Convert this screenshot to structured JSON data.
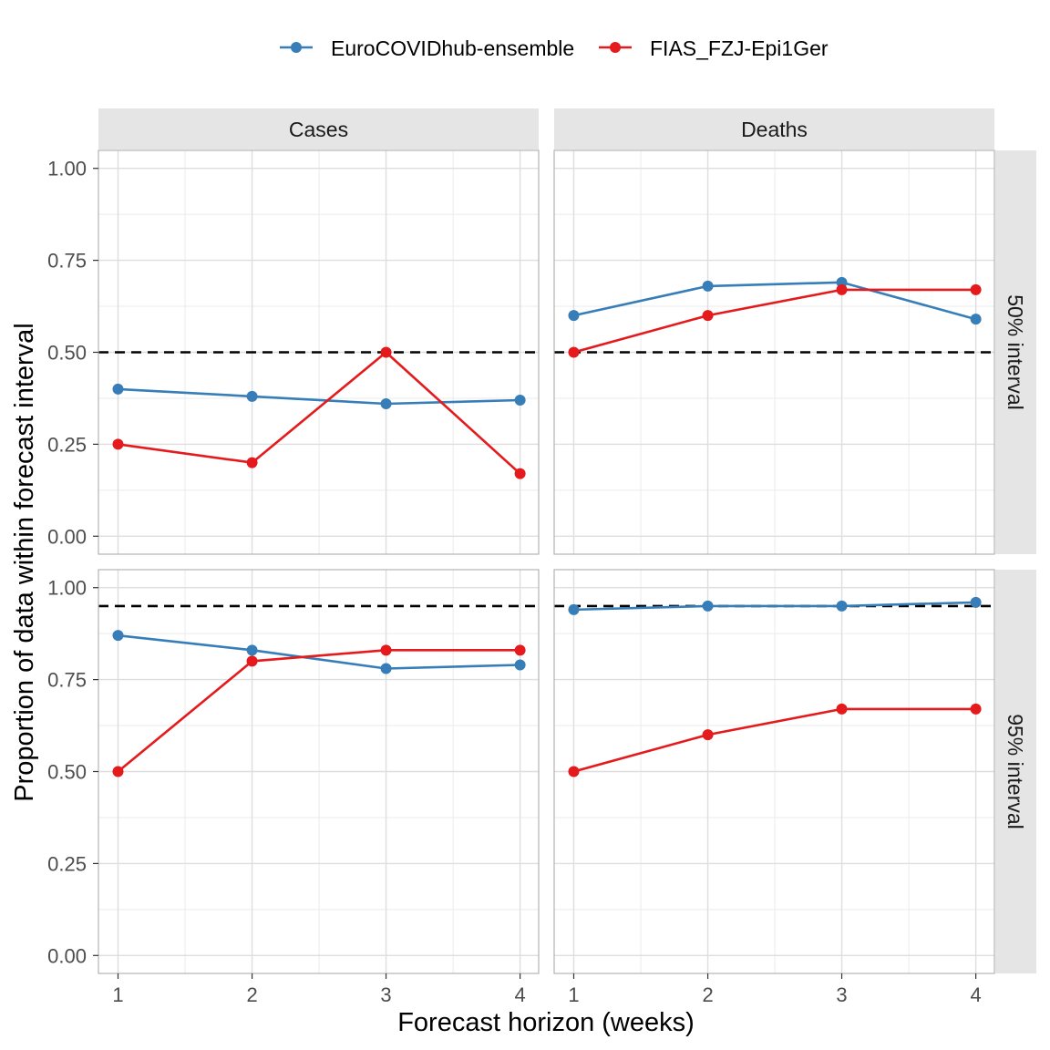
{
  "chart_data": {
    "type": "line",
    "xlabel": "Forecast horizon (weeks)",
    "ylabel": "Proportion of data within forecast interval",
    "x": [
      1,
      2,
      3,
      4
    ],
    "x_ticks": [
      "1",
      "2",
      "3",
      "4"
    ],
    "y_ticks": [
      "0.00",
      "0.25",
      "0.50",
      "0.75",
      "1.00"
    ],
    "ylim": [
      0,
      1
    ],
    "legend_position": "top",
    "columns": [
      "Cases",
      "Deaths"
    ],
    "rows": [
      "50% interval",
      "95% interval"
    ],
    "series_styles": [
      {
        "name": "EuroCOVIDhub-ensemble",
        "color": "#377EB8"
      },
      {
        "name": "FIAS_FZJ-Epi1Ger",
        "color": "#E41A1C"
      }
    ],
    "panels": [
      {
        "column": "Cases",
        "row": "50% interval",
        "reference": 0.5,
        "series": [
          {
            "name": "EuroCOVIDhub-ensemble",
            "values": [
              0.4,
              0.38,
              0.36,
              0.37
            ]
          },
          {
            "name": "FIAS_FZJ-Epi1Ger",
            "values": [
              0.25,
              0.2,
              0.5,
              0.17
            ]
          }
        ]
      },
      {
        "column": "Deaths",
        "row": "50% interval",
        "reference": 0.5,
        "series": [
          {
            "name": "EuroCOVIDhub-ensemble",
            "values": [
              0.6,
              0.68,
              0.69,
              0.59
            ]
          },
          {
            "name": "FIAS_FZJ-Epi1Ger",
            "values": [
              0.5,
              0.6,
              0.67,
              0.67
            ]
          }
        ]
      },
      {
        "column": "Cases",
        "row": "95% interval",
        "reference": 0.95,
        "series": [
          {
            "name": "EuroCOVIDhub-ensemble",
            "values": [
              0.87,
              0.83,
              0.78,
              0.79
            ]
          },
          {
            "name": "FIAS_FZJ-Epi1Ger",
            "values": [
              0.5,
              0.8,
              0.83,
              0.83
            ]
          }
        ]
      },
      {
        "column": "Deaths",
        "row": "95% interval",
        "reference": 0.95,
        "series": [
          {
            "name": "EuroCOVIDhub-ensemble",
            "values": [
              0.94,
              0.95,
              0.95,
              0.96
            ]
          },
          {
            "name": "FIAS_FZJ-Epi1Ger",
            "values": [
              0.5,
              0.6,
              0.67,
              0.67
            ]
          }
        ]
      }
    ]
  }
}
